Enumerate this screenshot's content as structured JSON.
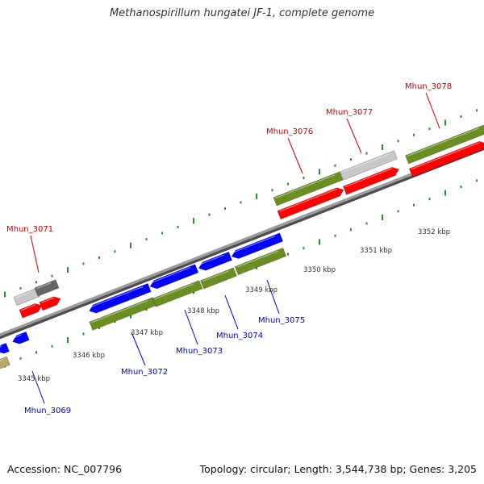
{
  "title": "Methanospirillum hungatei JF-1, complete genome",
  "footer": {
    "accession": "Accession: NC_007796",
    "summary": "Topology: circular; Length: 3,544,738 bp; Genes: 3,205"
  },
  "colors": {
    "backbone": "#8a8a8a",
    "tick": "#2e8b2e",
    "gene_forward": "#ff0000",
    "gene_reverse": "#0000ff",
    "cds_forward": "#6b8e23",
    "cds_reverse": "#6b8e23",
    "pseudo_light": "#c8c8c8",
    "pseudo_dark": "#666666",
    "partial_khaki": "#b5a96b",
    "label_forward": "#cc0000",
    "label_reverse": "#0000cc"
  },
  "scale_labels": [
    "3345 kbp",
    "3346 kbp",
    "3347 kbp",
    "3348 kbp",
    "3349 kbp",
    "3350 kbp",
    "3351 kbp",
    "3352 kbp"
  ],
  "genes": {
    "forward": [
      "Mhun_3071",
      "Mhun_3076",
      "Mhun_3077",
      "Mhun_3078"
    ],
    "reverse": [
      "Mhun_3069",
      "Mhun_3072",
      "Mhun_3073",
      "Mhun_3074",
      "Mhun_3075"
    ]
  }
}
